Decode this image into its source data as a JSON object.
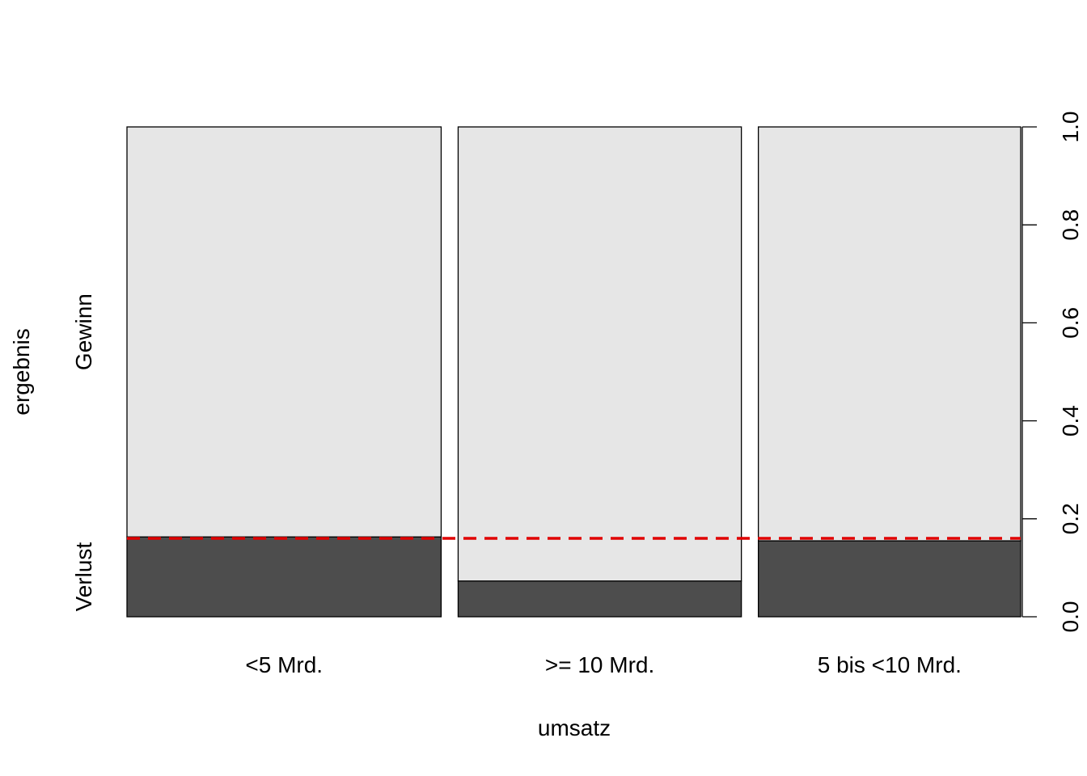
{
  "chart_data": {
    "type": "spineplot",
    "xlabel": "umsatz",
    "ylabel": "ergebnis",
    "categories": [
      "<5 Mrd.",
      ">= 10 Mrd.",
      "5 bis <10 Mrd."
    ],
    "category_widths": [
      0.406,
      0.366,
      0.339
    ],
    "levels": [
      "Verlust",
      "Gewinn"
    ],
    "series": [
      {
        "name": "Verlust",
        "color": "#4d4d4d",
        "values": [
          0.163,
          0.073,
          0.155
        ]
      },
      {
        "name": "Gewinn",
        "color": "#e6e6e6",
        "values": [
          0.837,
          0.927,
          0.845
        ]
      }
    ],
    "reference_line": {
      "value": 0.16,
      "color": "#e00000",
      "style": "dashed"
    },
    "ylim": [
      0,
      1
    ],
    "yticks": [
      "0.0",
      "0.2",
      "0.4",
      "0.6",
      "0.8",
      "1.0"
    ],
    "ytick_values": [
      0,
      0.2,
      0.4,
      0.6,
      0.8,
      1.0
    ],
    "y_axis_side": "right",
    "grid": false
  }
}
